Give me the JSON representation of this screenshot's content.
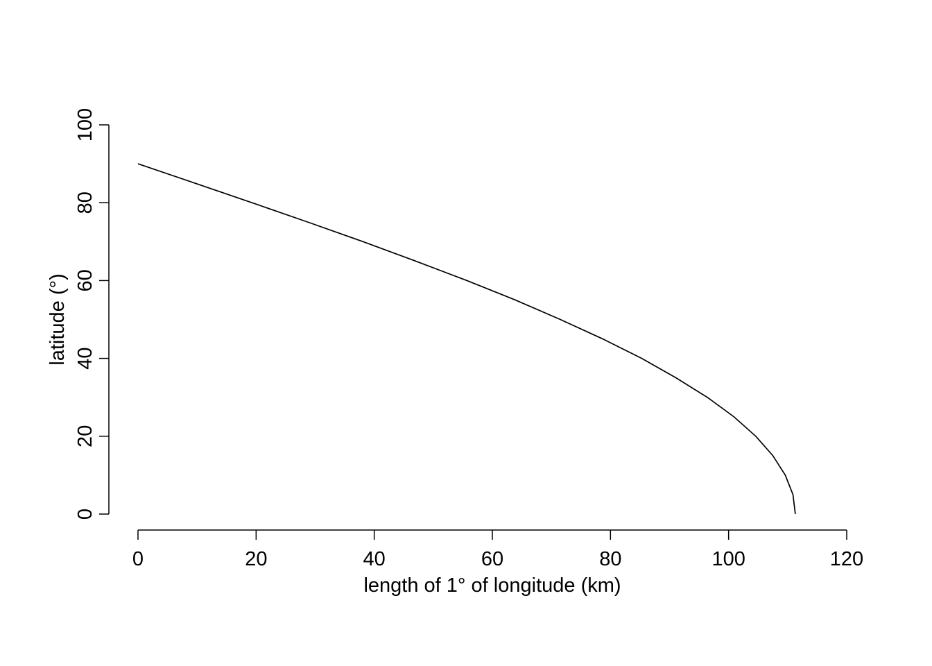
{
  "chart_data": {
    "type": "line",
    "title": "",
    "xlabel": "length of 1° of longitude (km)",
    "ylabel": "latitude (°)",
    "xlim": [
      0,
      120
    ],
    "ylim": [
      0,
      100
    ],
    "x_ticks": [
      "0",
      "20",
      "40",
      "60",
      "80",
      "100",
      "120"
    ],
    "y_ticks": [
      "0",
      "20",
      "40",
      "60",
      "80",
      "100"
    ],
    "grid": false,
    "legend": "none",
    "line_color": "#000000",
    "series": [
      {
        "x": [
          111.3,
          110.9,
          109.6,
          107.5,
          104.6,
          100.9,
          96.4,
          91.1,
          85.3,
          78.7,
          71.5,
          63.9,
          55.7,
          47.0,
          38.1,
          28.8,
          19.3,
          9.7,
          0.0
        ],
        "y": [
          0,
          5,
          10,
          15,
          20,
          25,
          30,
          35,
          40,
          45,
          50,
          55,
          60,
          65,
          70,
          75,
          80,
          85,
          90
        ]
      }
    ]
  }
}
